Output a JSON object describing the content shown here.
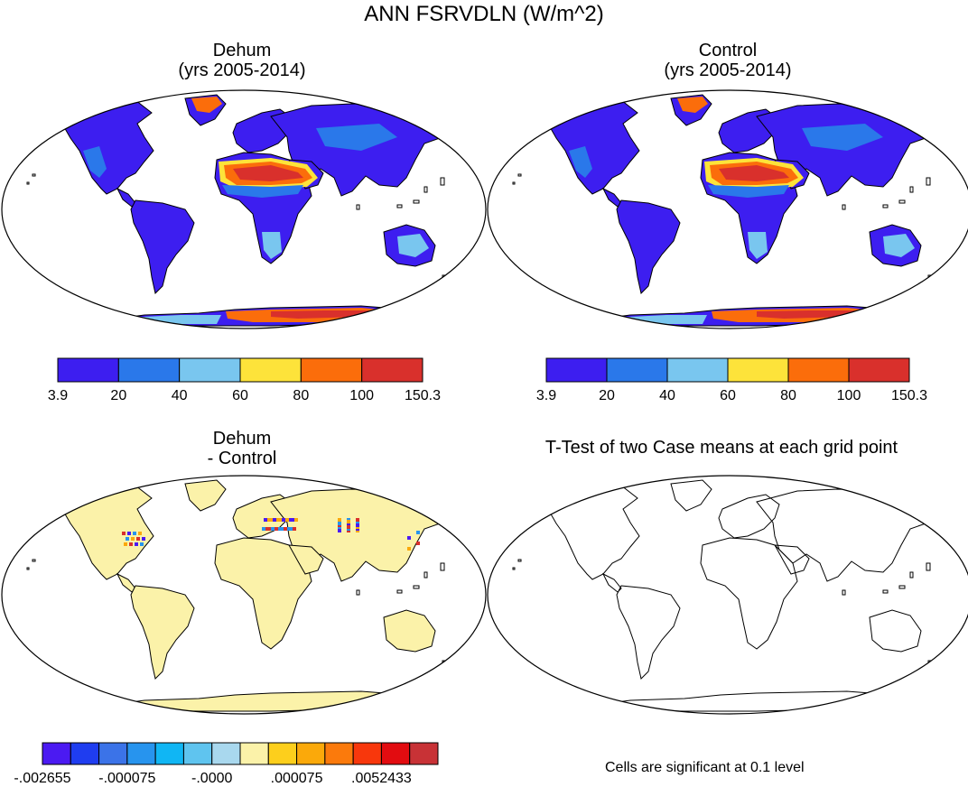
{
  "title": "ANN FSRVDLN (W/m^2)",
  "panels": [
    {
      "id": "dehum",
      "title_line1": "Dehum",
      "title_line2": "(yrs 2005-2014)"
    },
    {
      "id": "control",
      "title_line1": "Control",
      "title_line2": "(yrs 2005-2014)"
    },
    {
      "id": "diff",
      "title_line1": "Dehum",
      "title_line2": "- Control"
    },
    {
      "id": "ttest",
      "title_line1": "T-Test of two Case means at each grid point",
      "title_line2": ""
    }
  ],
  "ttest_note": "Cells are significant at 0.1 level",
  "chart_data": [
    {
      "type": "heatmap",
      "title": "Dehum (yrs 2005-2014)",
      "colorbar": {
        "labels": [
          "3.9",
          "20",
          "40",
          "60",
          "80",
          "100",
          "150.3"
        ],
        "colors": [
          "#3d1ef0",
          "#2a78ea",
          "#79c6ef",
          "#fde33a",
          "#fb6d0b",
          "#d9302c"
        ]
      }
    },
    {
      "type": "heatmap",
      "title": "Control (yrs 2005-2014)",
      "colorbar": {
        "labels": [
          "3.9",
          "20",
          "40",
          "60",
          "80",
          "100",
          "150.3"
        ],
        "colors": [
          "#3d1ef0",
          "#2a78ea",
          "#79c6ef",
          "#fde33a",
          "#fb6d0b",
          "#d9302c"
        ]
      }
    },
    {
      "type": "heatmap",
      "title": "Dehum - Control",
      "colorbar": {
        "labels": [
          "-.002655",
          "-.000075",
          "-.0000",
          ".000075",
          ".0052433"
        ],
        "label_at_boundary": [
          0,
          3,
          6,
          9,
          12
        ],
        "colors": [
          "#4b1af2",
          "#1f3df0",
          "#3b73e8",
          "#2794ee",
          "#10b6f4",
          "#5fc4ef",
          "#a9d8ee",
          "#fbf2a9",
          "#fdcf1c",
          "#fba90a",
          "#fb7a0c",
          "#f8370c",
          "#e20c10",
          "#c83236"
        ]
      }
    },
    {
      "type": "heatmap",
      "title": "T-Test of two Case means at each grid point",
      "note": "Cells are significant at 0.1 level"
    }
  ]
}
